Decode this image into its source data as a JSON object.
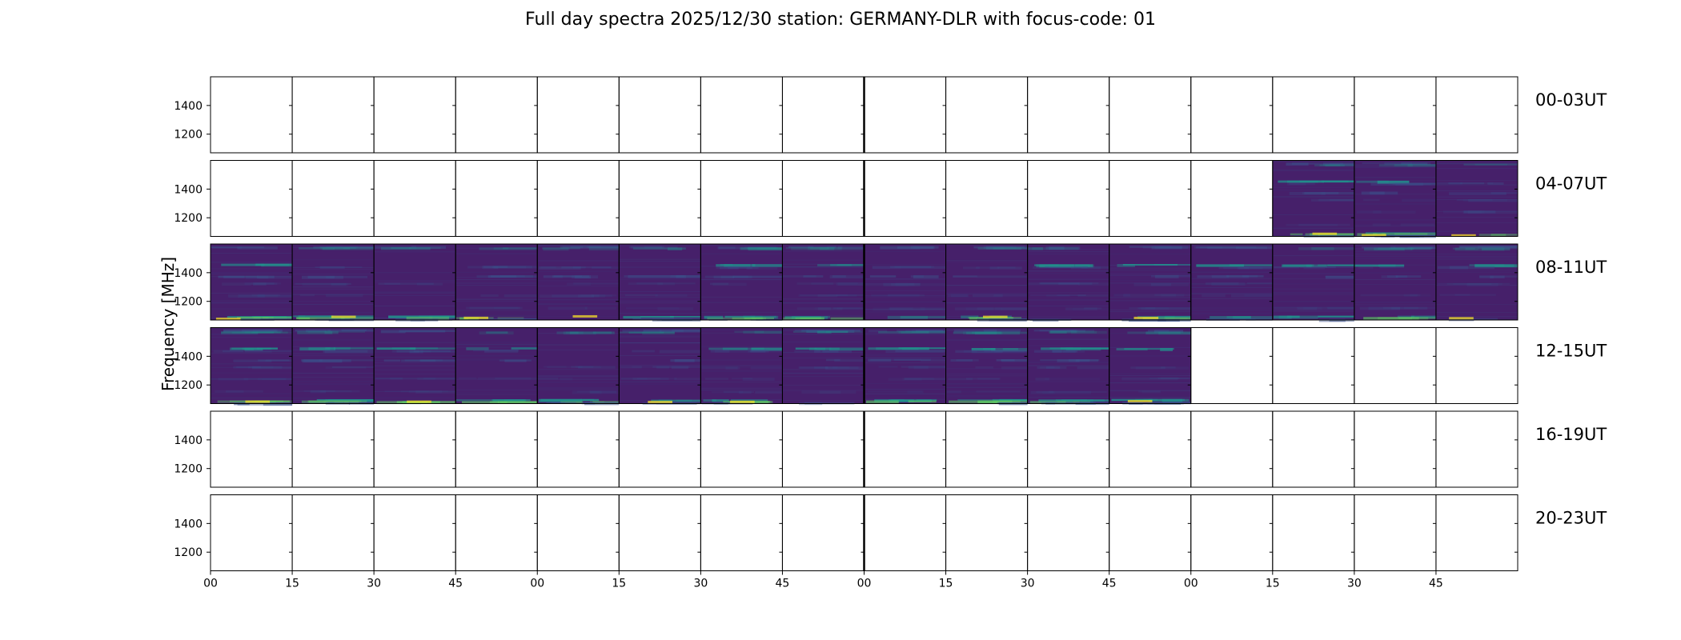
{
  "chart_data": {
    "type": "heatmap",
    "title": "Full day spectra 2025/12/30 station: GERMANY-DLR with focus-code: 01",
    "ylabel": "Frequency [MHz]",
    "xlabel": "",
    "x_tick_labels": [
      "00",
      "15",
      "30",
      "45",
      "00",
      "15",
      "30",
      "45",
      "00",
      "15",
      "30",
      "45",
      "00",
      "15",
      "30",
      "45"
    ],
    "y_ticks": [
      1400,
      1200
    ],
    "ylim": [
      1070,
      1600
    ],
    "colormap": "viridis",
    "panels_per_row": 16,
    "rows": [
      {
        "label": "00-03UT",
        "filled_panels": []
      },
      {
        "label": "04-07UT",
        "filled_panels": [
          13,
          14,
          15
        ]
      },
      {
        "label": "08-11UT",
        "filled_panels": [
          0,
          1,
          2,
          3,
          4,
          5,
          6,
          7,
          8,
          9,
          10,
          11,
          12,
          13,
          14,
          15
        ]
      },
      {
        "label": "12-15UT",
        "filled_panels": [
          0,
          1,
          2,
          3,
          4,
          5,
          6,
          7,
          8,
          9,
          10,
          11
        ]
      },
      {
        "label": "16-19UT",
        "filled_panels": []
      },
      {
        "label": "20-23UT",
        "filled_panels": []
      }
    ],
    "colors": {
      "background_data": "#46206a",
      "low": "#440154",
      "mid": "#3b528b",
      "high": "#21918c",
      "peak": "#5ec962",
      "max": "#fde725"
    }
  }
}
